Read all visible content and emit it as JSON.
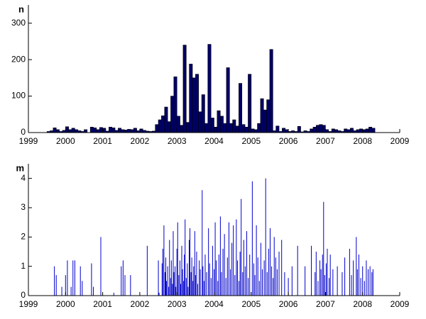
{
  "chart_data": [
    {
      "type": "histogram",
      "ylabel": "n",
      "bins": [
        1999.5,
        1999.583,
        1999.667,
        1999.75,
        1999.833,
        1999.917,
        2000,
        2000.083,
        2000.167,
        2000.25,
        2000.333,
        2000.417,
        2000.5,
        2000.583,
        2000.667,
        2000.75,
        2000.833,
        2000.917,
        2001,
        2001.083,
        2001.167,
        2001.25,
        2001.333,
        2001.417,
        2001.5,
        2001.583,
        2001.667,
        2001.75,
        2001.833,
        2001.917,
        2002,
        2002.083,
        2002.167,
        2002.25,
        2002.333,
        2002.417,
        2002.5,
        2002.583,
        2002.667,
        2002.75,
        2002.833,
        2002.917,
        2003,
        2003.083,
        2003.167,
        2003.25,
        2003.333,
        2003.417,
        2003.5,
        2003.583,
        2003.667,
        2003.75,
        2003.833,
        2003.917,
        2004,
        2004.083,
        2004.167,
        2004.25,
        2004.333,
        2004.417,
        2004.5,
        2004.583,
        2004.667,
        2004.75,
        2004.833,
        2004.917,
        2005,
        2005.083,
        2005.167,
        2005.25,
        2005.333,
        2005.417,
        2005.5,
        2005.583,
        2005.667,
        2005.75,
        2005.833,
        2005.917,
        2006,
        2006.083,
        2006.167,
        2006.25,
        2006.333,
        2006.417,
        2006.5,
        2006.583,
        2006.667,
        2006.75,
        2006.833,
        2006.917,
        2007,
        2007.083,
        2007.167,
        2007.25,
        2007.333,
        2007.417,
        2007.5,
        2007.583,
        2007.667,
        2007.75,
        2007.833,
        2007.917,
        2008,
        2008.083,
        2008.167,
        2008.25,
        2008.333
      ],
      "counts": [
        3,
        5,
        13,
        8,
        3,
        6,
        16,
        8,
        12,
        8,
        5,
        3,
        8,
        0,
        15,
        13,
        8,
        14,
        12,
        4,
        15,
        13,
        6,
        12,
        8,
        7,
        9,
        8,
        12,
        5,
        10,
        6,
        4,
        3,
        4,
        22,
        35,
        46,
        70,
        30,
        100,
        153,
        45,
        20,
        240,
        28,
        188,
        150,
        160,
        57,
        104,
        25,
        242,
        40,
        15,
        60,
        45,
        25,
        178,
        25,
        35,
        18,
        135,
        22,
        15,
        160,
        10,
        8,
        25,
        93,
        62,
        90,
        228,
        5,
        18,
        3,
        12,
        8,
        3,
        5,
        3,
        17,
        2,
        5,
        3,
        10,
        15,
        20,
        22,
        20,
        8,
        3,
        10,
        8,
        5,
        3,
        10,
        8,
        12,
        5,
        8,
        10,
        8,
        10,
        15,
        12
      ],
      "color": "#000066",
      "xlim": [
        1999,
        2009
      ],
      "xticks": [
        1999,
        2000,
        2001,
        2002,
        2003,
        2004,
        2005,
        2006,
        2007,
        2008,
        2009
      ],
      "ylim": [
        0,
        350
      ],
      "yticks": [
        0,
        100,
        200,
        300
      ]
    },
    {
      "type": "stem",
      "ylabel": "m",
      "color": "#0000cc",
      "x": [
        1999.7,
        1999.75,
        1999.9,
        2000.0,
        2000.05,
        2000.15,
        2000.2,
        2000.25,
        2000.4,
        2000.45,
        2000.7,
        2000.75,
        2000.95,
        2001.3,
        2001.5,
        2001.55,
        2001.6,
        2001.75,
        2002.2,
        2002.5,
        2002.52,
        2002.6,
        2002.62,
        2002.65,
        2002.68,
        2002.7,
        2002.72,
        2002.75,
        2002.78,
        2002.8,
        2002.83,
        2002.85,
        2002.88,
        2002.9,
        2002.92,
        2002.95,
        2002.97,
        2003.0,
        2003.02,
        2003.05,
        2003.08,
        2003.1,
        2003.13,
        2003.15,
        2003.18,
        2003.2,
        2003.22,
        2003.25,
        2003.28,
        2003.3,
        2003.33,
        2003.35,
        2003.38,
        2003.4,
        2003.43,
        2003.45,
        2003.48,
        2003.5,
        2003.53,
        2003.56,
        2003.6,
        2003.63,
        2003.68,
        2003.7,
        2003.73,
        2003.76,
        2003.8,
        2003.85,
        2003.88,
        2003.92,
        2003.96,
        2004.0,
        2004.03,
        2004.06,
        2004.1,
        2004.13,
        2004.17,
        2004.2,
        2004.24,
        2004.28,
        2004.32,
        2004.36,
        2004.4,
        2004.44,
        2004.48,
        2004.52,
        2004.56,
        2004.6,
        2004.63,
        2004.67,
        2004.7,
        2004.73,
        2004.77,
        2004.8,
        2004.84,
        2004.88,
        2004.92,
        2004.96,
        2005.03,
        2005.07,
        2005.1,
        2005.14,
        2005.18,
        2005.22,
        2005.26,
        2005.3,
        2005.35,
        2005.39,
        2005.43,
        2005.47,
        2005.51,
        2005.55,
        2005.59,
        2005.62,
        2005.66,
        2005.7,
        2005.75,
        2005.82,
        2005.9,
        2006.0,
        2006.1,
        2006.25,
        2006.45,
        2006.62,
        2006.72,
        2006.75,
        2006.8,
        2006.85,
        2006.88,
        2006.92,
        2006.95,
        2006.98,
        2007.02,
        2007.05,
        2007.1,
        2007.13,
        2007.2,
        2007.32,
        2007.45,
        2007.52,
        2007.65,
        2007.7,
        2007.75,
        2007.83,
        2007.86,
        2007.9,
        2007.95,
        2008.0,
        2008.05,
        2008.1,
        2008.15,
        2008.2,
        2008.25,
        2008.28
      ],
      "values": [
        1.0,
        0.7,
        0.3,
        0.7,
        1.2,
        0.3,
        1.2,
        1.2,
        1.0,
        0.5,
        1.1,
        0.3,
        2.0,
        0.1,
        1.0,
        1.2,
        0.7,
        0.7,
        1.7,
        1.2,
        0.1,
        1.1,
        1.6,
        2.4,
        0.8,
        1.3,
        0.5,
        1.0,
        0.3,
        1.9,
        0.6,
        1.2,
        0.4,
        2.2,
        0.8,
        1.0,
        0.3,
        1.6,
        2.5,
        0.7,
        1.2,
        0.4,
        1.7,
        0.9,
        0.5,
        1.4,
        2.6,
        0.6,
        1.1,
        0.3,
        1.9,
        2.3,
        0.8,
        1.3,
        0.5,
        1.0,
        2.2,
        0.7,
        1.5,
        0.4,
        1.2,
        0.9,
        3.6,
        1.0,
        0.5,
        1.4,
        0.8,
        2.3,
        1.1,
        0.6,
        1.7,
        0.9,
        2.5,
        1.2,
        0.5,
        1.4,
        2.7,
        0.8,
        1.6,
        2.1,
        0.6,
        1.3,
        2.5,
        0.9,
        1.8,
        2.4,
        0.7,
        2.6,
        1.2,
        0.5,
        1.5,
        3.3,
        0.8,
        1.9,
        1.0,
        2.2,
        0.6,
        1.4,
        3.9,
        1.1,
        0.7,
        2.4,
        1.3,
        0.5,
        1.8,
        0.9,
        1.2,
        4.0,
        0.8,
        1.6,
        2.3,
        1.0,
        0.6,
        2.0,
        1.3,
        0.9,
        1.5,
        1.9,
        0.8,
        0.6,
        1.0,
        1.7,
        1.0,
        1.7,
        0.8,
        1.5,
        0.5,
        1.2,
        0.9,
        1.4,
        3.2,
        0.7,
        1.1,
        1.6,
        0.6,
        1.4,
        0.9,
        1.0,
        0.8,
        1.3,
        1.6,
        0.7,
        1.2,
        2.0,
        0.9,
        1.4,
        0.6,
        1.0,
        0.5,
        1.2,
        0.9,
        1.0,
        0.8,
        0.9
      ],
      "xlim": [
        1999,
        2009
      ],
      "xticks": [
        1999,
        2000,
        2001,
        2002,
        2003,
        2004,
        2005,
        2006,
        2007,
        2008,
        2009
      ],
      "ylim": [
        0,
        4.5
      ],
      "yticks": [
        0,
        1,
        2,
        3,
        4
      ]
    }
  ]
}
